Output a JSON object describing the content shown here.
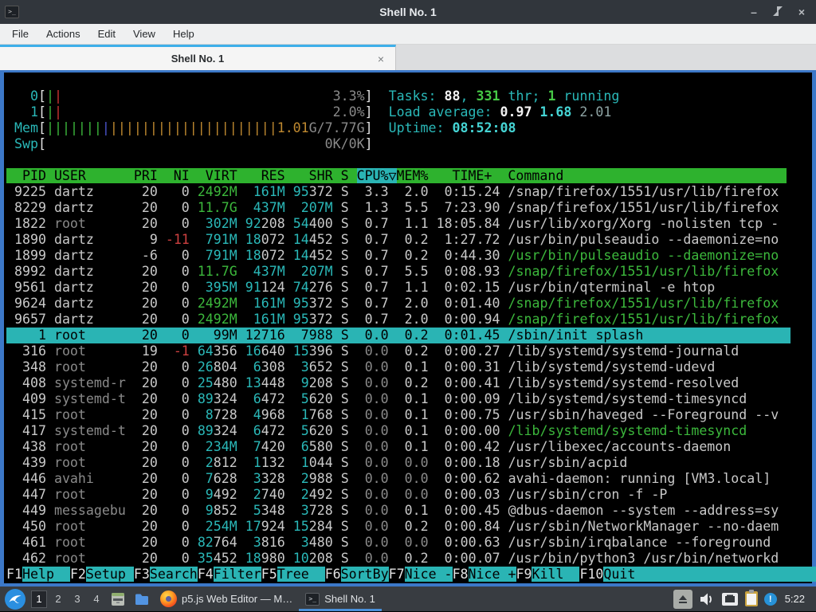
{
  "window": {
    "title": "Shell No. 1",
    "minimize": "–",
    "close": "×"
  },
  "menu": {
    "items": [
      "File",
      "Actions",
      "Edit",
      "View",
      "Help"
    ]
  },
  "tab": {
    "label": "Shell No. 1",
    "close": "×"
  },
  "colors": {
    "accent_blue": "#3daee9",
    "window_border": "#3c78c8",
    "titlebar_bg": "#31363c",
    "panel_bg": "#383c41",
    "htop_header_green": "#2eb22e",
    "htop_selection_cyan": "#2ab4b4",
    "term_green": "#3cb83c",
    "term_cyan": "#2ab8b8",
    "term_red": "#cc4040",
    "term_orange": "#c08a30"
  },
  "htop": {
    "current_user": "dartz",
    "meters": {
      "cpu0": {
        "label": "0",
        "bars": [
          "green",
          "red"
        ],
        "value": "3.3%"
      },
      "cpu1": {
        "label": "1",
        "bars": [
          "green",
          "red"
        ],
        "value": "2.0%"
      },
      "mem": {
        "label": "Mem",
        "bars_green": 7,
        "bars_blue": 1,
        "bars_orange": 21,
        "value": "1.01G/7.77G"
      },
      "swp": {
        "label": "Swp",
        "value": "0K/0K"
      }
    },
    "info": {
      "tasks_label": "Tasks: ",
      "tasks": "88",
      "tasks_mid": ", ",
      "threads": "331",
      "threads_suffix": " thr; ",
      "running": "1",
      "running_suffix": " running",
      "load_label": "Load average: ",
      "load1": "0.97",
      "load5": "1.68",
      "load15": "2.01",
      "uptime_label": "Uptime: ",
      "uptime": "08:52:08"
    },
    "header_segments": [
      {
        "text": "  PID USER      PRI  NI  VIRT   RES   SHR S ",
        "bg": "green"
      },
      {
        "text": "CPU%▽",
        "bg": "cyan"
      },
      {
        "text": "MEM%   TIME+  Command",
        "bg": "green"
      }
    ],
    "rows": [
      {
        "pid": "9225",
        "user": "dartz",
        "pri": "20",
        "ni": "0",
        "virt": "2492M",
        "res": "161M",
        "shr": "95372",
        "s": "S",
        "cpu": "3.3",
        "mem": "2.0",
        "time": "0:15.24",
        "cmd": "/snap/firefox/1551/usr/lib/firefox",
        "thread": false,
        "selected": false
      },
      {
        "pid": "8229",
        "user": "dartz",
        "pri": "20",
        "ni": "0",
        "virt": "11.7G",
        "res": "437M",
        "shr": "207M",
        "s": "S",
        "cpu": "1.3",
        "mem": "5.5",
        "time": "7:23.90",
        "cmd": "/snap/firefox/1551/usr/lib/firefox",
        "thread": false,
        "selected": false
      },
      {
        "pid": "1822",
        "user": "root",
        "pri": "20",
        "ni": "0",
        "virt": "302M",
        "res": "92208",
        "shr": "54400",
        "s": "S",
        "cpu": "0.7",
        "mem": "1.1",
        "time": "18:05.84",
        "cmd": "/usr/lib/xorg/Xorg -nolisten tcp -",
        "thread": false,
        "selected": false
      },
      {
        "pid": "1890",
        "user": "dartz",
        "pri": "9",
        "ni": "-11",
        "virt": "791M",
        "res": "18072",
        "shr": "14452",
        "s": "S",
        "cpu": "0.7",
        "mem": "0.2",
        "time": "1:27.72",
        "cmd": "/usr/bin/pulseaudio --daemonize=no",
        "thread": false,
        "selected": false
      },
      {
        "pid": "1899",
        "user": "dartz",
        "pri": "-6",
        "ni": "0",
        "virt": "791M",
        "res": "18072",
        "shr": "14452",
        "s": "S",
        "cpu": "0.7",
        "mem": "0.2",
        "time": "0:44.30",
        "cmd": "/usr/bin/pulseaudio --daemonize=no",
        "thread": true,
        "selected": false
      },
      {
        "pid": "8992",
        "user": "dartz",
        "pri": "20",
        "ni": "0",
        "virt": "11.7G",
        "res": "437M",
        "shr": "207M",
        "s": "S",
        "cpu": "0.7",
        "mem": "5.5",
        "time": "0:08.93",
        "cmd": "/snap/firefox/1551/usr/lib/firefox",
        "thread": true,
        "selected": false
      },
      {
        "pid": "9561",
        "user": "dartz",
        "pri": "20",
        "ni": "0",
        "virt": "395M",
        "res": "91124",
        "shr": "74276",
        "s": "S",
        "cpu": "0.7",
        "mem": "1.1",
        "time": "0:02.15",
        "cmd": "/usr/bin/qterminal -e htop",
        "thread": false,
        "selected": false
      },
      {
        "pid": "9624",
        "user": "dartz",
        "pri": "20",
        "ni": "0",
        "virt": "2492M",
        "res": "161M",
        "shr": "95372",
        "s": "S",
        "cpu": "0.7",
        "mem": "2.0",
        "time": "0:01.40",
        "cmd": "/snap/firefox/1551/usr/lib/firefox",
        "thread": true,
        "selected": false
      },
      {
        "pid": "9657",
        "user": "dartz",
        "pri": "20",
        "ni": "0",
        "virt": "2492M",
        "res": "161M",
        "shr": "95372",
        "s": "S",
        "cpu": "0.7",
        "mem": "2.0",
        "time": "0:00.94",
        "cmd": "/snap/firefox/1551/usr/lib/firefox",
        "thread": true,
        "selected": false
      },
      {
        "pid": "1",
        "user": "root",
        "pri": "20",
        "ni": "0",
        "virt": "99M",
        "res": "12716",
        "shr": "7988",
        "s": "S",
        "cpu": "0.0",
        "mem": "0.2",
        "time": "0:01.45",
        "cmd": "/sbin/init splash",
        "thread": false,
        "selected": true
      },
      {
        "pid": "316",
        "user": "root",
        "pri": "19",
        "ni": "-1",
        "virt": "64356",
        "res": "16640",
        "shr": "15396",
        "s": "S",
        "cpu": "0.0",
        "mem": "0.2",
        "time": "0:00.27",
        "cmd": "/lib/systemd/systemd-journald",
        "thread": false,
        "selected": false
      },
      {
        "pid": "348",
        "user": "root",
        "pri": "20",
        "ni": "0",
        "virt": "26804",
        "res": "6308",
        "shr": "3652",
        "s": "S",
        "cpu": "0.0",
        "mem": "0.1",
        "time": "0:00.31",
        "cmd": "/lib/systemd/systemd-udevd",
        "thread": false,
        "selected": false
      },
      {
        "pid": "408",
        "user": "systemd-r",
        "pri": "20",
        "ni": "0",
        "virt": "25480",
        "res": "13448",
        "shr": "9208",
        "s": "S",
        "cpu": "0.0",
        "mem": "0.2",
        "time": "0:00.41",
        "cmd": "/lib/systemd/systemd-resolved",
        "thread": false,
        "selected": false
      },
      {
        "pid": "409",
        "user": "systemd-t",
        "pri": "20",
        "ni": "0",
        "virt": "89324",
        "res": "6472",
        "shr": "5620",
        "s": "S",
        "cpu": "0.0",
        "mem": "0.1",
        "time": "0:00.09",
        "cmd": "/lib/systemd/systemd-timesyncd",
        "thread": false,
        "selected": false
      },
      {
        "pid": "415",
        "user": "root",
        "pri": "20",
        "ni": "0",
        "virt": "8728",
        "res": "4968",
        "shr": "1768",
        "s": "S",
        "cpu": "0.0",
        "mem": "0.1",
        "time": "0:00.75",
        "cmd": "/usr/sbin/haveged --Foreground --v",
        "thread": false,
        "selected": false
      },
      {
        "pid": "417",
        "user": "systemd-t",
        "pri": "20",
        "ni": "0",
        "virt": "89324",
        "res": "6472",
        "shr": "5620",
        "s": "S",
        "cpu": "0.0",
        "mem": "0.1",
        "time": "0:00.00",
        "cmd": "/lib/systemd/systemd-timesyncd",
        "thread": true,
        "selected": false
      },
      {
        "pid": "438",
        "user": "root",
        "pri": "20",
        "ni": "0",
        "virt": "234M",
        "res": "7420",
        "shr": "6580",
        "s": "S",
        "cpu": "0.0",
        "mem": "0.1",
        "time": "0:00.42",
        "cmd": "/usr/libexec/accounts-daemon",
        "thread": false,
        "selected": false
      },
      {
        "pid": "439",
        "user": "root",
        "pri": "20",
        "ni": "0",
        "virt": "2812",
        "res": "1132",
        "shr": "1044",
        "s": "S",
        "cpu": "0.0",
        "mem": "0.0",
        "time": "0:00.18",
        "cmd": "/usr/sbin/acpid",
        "thread": false,
        "selected": false
      },
      {
        "pid": "446",
        "user": "avahi",
        "pri": "20",
        "ni": "0",
        "virt": "7628",
        "res": "3328",
        "shr": "2988",
        "s": "S",
        "cpu": "0.0",
        "mem": "0.0",
        "time": "0:00.62",
        "cmd": "avahi-daemon: running [VM3.local]",
        "thread": false,
        "selected": false
      },
      {
        "pid": "447",
        "user": "root",
        "pri": "20",
        "ni": "0",
        "virt": "9492",
        "res": "2740",
        "shr": "2492",
        "s": "S",
        "cpu": "0.0",
        "mem": "0.0",
        "time": "0:00.03",
        "cmd": "/usr/sbin/cron -f -P",
        "thread": false,
        "selected": false
      },
      {
        "pid": "449",
        "user": "messagebu",
        "pri": "20",
        "ni": "0",
        "virt": "9852",
        "res": "5348",
        "shr": "3728",
        "s": "S",
        "cpu": "0.0",
        "mem": "0.1",
        "time": "0:00.45",
        "cmd": "@dbus-daemon --system --address=sy",
        "thread": false,
        "selected": false
      },
      {
        "pid": "450",
        "user": "root",
        "pri": "20",
        "ni": "0",
        "virt": "254M",
        "res": "17924",
        "shr": "15284",
        "s": "S",
        "cpu": "0.0",
        "mem": "0.2",
        "time": "0:00.84",
        "cmd": "/usr/sbin/NetworkManager --no-daem",
        "thread": false,
        "selected": false
      },
      {
        "pid": "461",
        "user": "root",
        "pri": "20",
        "ni": "0",
        "virt": "82764",
        "res": "3816",
        "shr": "3480",
        "s": "S",
        "cpu": "0.0",
        "mem": "0.0",
        "time": "0:00.63",
        "cmd": "/usr/sbin/irqbalance --foreground",
        "thread": false,
        "selected": false
      },
      {
        "pid": "462",
        "user": "root",
        "pri": "20",
        "ni": "0",
        "virt": "35452",
        "res": "18980",
        "shr": "10208",
        "s": "S",
        "cpu": "0.0",
        "mem": "0.2",
        "time": "0:00.07",
        "cmd": "/usr/bin/python3 /usr/bin/networkd",
        "thread": false,
        "selected": false
      }
    ],
    "fkeys": [
      {
        "key": "F1",
        "label": "Help"
      },
      {
        "key": "F2",
        "label": "Setup"
      },
      {
        "key": "F3",
        "label": "Search"
      },
      {
        "key": "F4",
        "label": "Filter"
      },
      {
        "key": "F5",
        "label": "Tree"
      },
      {
        "key": "F6",
        "label": "SortBy"
      },
      {
        "key": "F7",
        "label": "Nice -"
      },
      {
        "key": "F8",
        "label": "Nice +"
      },
      {
        "key": "F9",
        "label": "Kill"
      },
      {
        "key": "F10",
        "label": "Quit"
      }
    ]
  },
  "taskbar": {
    "workspaces": [
      "1",
      "2",
      "3",
      "4"
    ],
    "active_workspace": "1",
    "tasks": [
      {
        "icon": "firefox-icon",
        "label": "p5.js Web Editor — M…",
        "active": false
      },
      {
        "icon": "terminal-icon",
        "label": "Shell No. 1",
        "active": true
      }
    ],
    "clock": "5:22"
  }
}
